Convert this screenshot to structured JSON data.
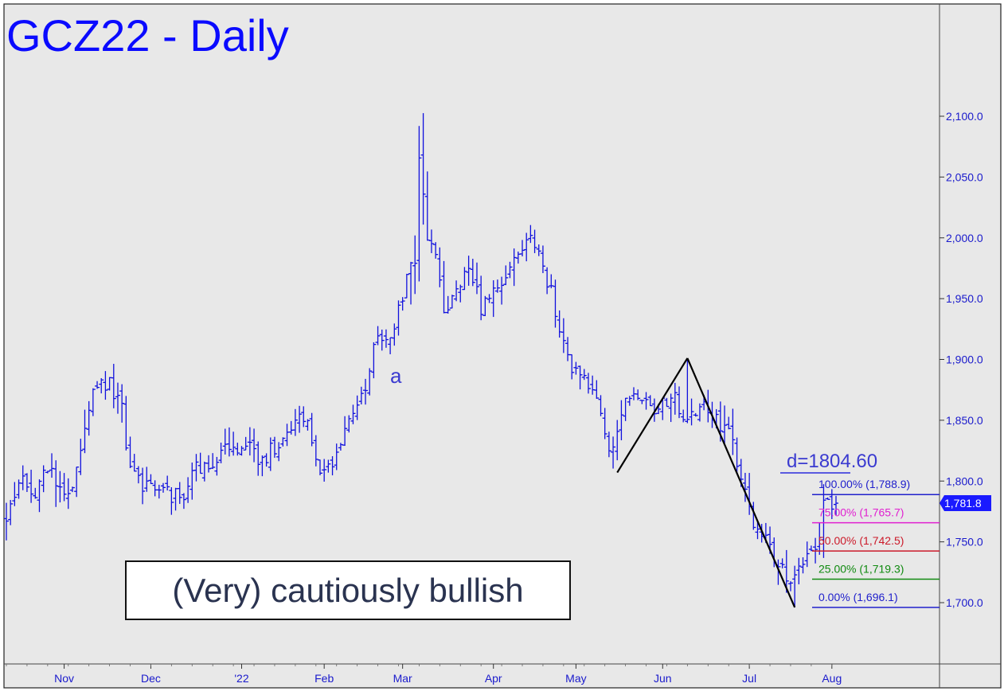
{
  "chart_data": {
    "type": "ohlc",
    "title": "GCZ22 - Daily",
    "annotation_box": "(Very) cautiously bullish",
    "wave_label": "a",
    "d_target_label": "d=1804.60",
    "last_price_badge": "1,781.8",
    "ylim": [
      1652,
      2150
    ],
    "y_ticks": [
      {
        "value": 1700,
        "label": "1,700.0"
      },
      {
        "value": 1750,
        "label": "1,750.0"
      },
      {
        "value": 1800,
        "label": "1,800.0"
      },
      {
        "value": 1850,
        "label": "1,850.0"
      },
      {
        "value": 1900,
        "label": "1,900.0"
      },
      {
        "value": 1950,
        "label": "1,950.0"
      },
      {
        "value": 2000,
        "label": "2,000.0"
      },
      {
        "value": 2050,
        "label": "2,050.0"
      },
      {
        "value": 2100,
        "label": "2,100.0"
      }
    ],
    "x_ticks": [
      {
        "index": 14,
        "label": "Nov"
      },
      {
        "index": 35,
        "label": "Dec"
      },
      {
        "index": 57,
        "label": "'22"
      },
      {
        "index": 77,
        "label": "Feb"
      },
      {
        "index": 96,
        "label": "Mar"
      },
      {
        "index": 118,
        "label": "Apr"
      },
      {
        "index": 138,
        "label": "May"
      },
      {
        "index": 159,
        "label": "Jun"
      },
      {
        "index": 180,
        "label": "Jul"
      },
      {
        "index": 200,
        "label": "Aug"
      }
    ],
    "bar_count": 202,
    "price_path": [
      {
        "i": 0,
        "v": 1768
      },
      {
        "i": 3,
        "v": 1805
      },
      {
        "i": 6,
        "v": 1785
      },
      {
        "i": 10,
        "v": 1810
      },
      {
        "i": 14,
        "v": 1788
      },
      {
        "i": 17,
        "v": 1808
      },
      {
        "i": 21,
        "v": 1875
      },
      {
        "i": 25,
        "v": 1880
      },
      {
        "i": 28,
        "v": 1862
      },
      {
        "i": 30,
        "v": 1805
      },
      {
        "i": 33,
        "v": 1795
      },
      {
        "i": 38,
        "v": 1790
      },
      {
        "i": 43,
        "v": 1785
      },
      {
        "i": 45,
        "v": 1810
      },
      {
        "i": 50,
        "v": 1815
      },
      {
        "i": 53,
        "v": 1825
      },
      {
        "i": 57,
        "v": 1830
      },
      {
        "i": 62,
        "v": 1818
      },
      {
        "i": 66,
        "v": 1832
      },
      {
        "i": 70,
        "v": 1850
      },
      {
        "i": 73,
        "v": 1852
      },
      {
        "i": 76,
        "v": 1800
      },
      {
        "i": 79,
        "v": 1812
      },
      {
        "i": 83,
        "v": 1845
      },
      {
        "i": 87,
        "v": 1880
      },
      {
        "i": 90,
        "v": 1925
      },
      {
        "i": 93,
        "v": 1915
      },
      {
        "i": 96,
        "v": 1955
      },
      {
        "i": 99,
        "v": 1985
      },
      {
        "i": 100,
        "v": 2060
      },
      {
        "i": 102,
        "v": 2005
      },
      {
        "i": 104,
        "v": 1985
      },
      {
        "i": 106,
        "v": 1935
      },
      {
        "i": 109,
        "v": 1955
      },
      {
        "i": 112,
        "v": 1975
      },
      {
        "i": 115,
        "v": 1942
      },
      {
        "i": 118,
        "v": 1955
      },
      {
        "i": 121,
        "v": 1968
      },
      {
        "i": 124,
        "v": 1990
      },
      {
        "i": 127,
        "v": 2005
      },
      {
        "i": 130,
        "v": 1975
      },
      {
        "i": 132,
        "v": 1955
      },
      {
        "i": 134,
        "v": 1920
      },
      {
        "i": 137,
        "v": 1895
      },
      {
        "i": 140,
        "v": 1888
      },
      {
        "i": 143,
        "v": 1865
      },
      {
        "i": 145,
        "v": 1835
      },
      {
        "i": 147,
        "v": 1825
      },
      {
        "i": 150,
        "v": 1865
      },
      {
        "i": 153,
        "v": 1875
      },
      {
        "i": 156,
        "v": 1860
      },
      {
        "i": 159,
        "v": 1865
      },
      {
        "i": 162,
        "v": 1875
      },
      {
        "i": 164,
        "v": 1845
      },
      {
        "i": 166,
        "v": 1855
      },
      {
        "i": 169,
        "v": 1865
      },
      {
        "i": 172,
        "v": 1850
      },
      {
        "i": 175,
        "v": 1840
      },
      {
        "i": 178,
        "v": 1805
      },
      {
        "i": 181,
        "v": 1762
      },
      {
        "i": 184,
        "v": 1755
      },
      {
        "i": 187,
        "v": 1730
      },
      {
        "i": 190,
        "v": 1718
      },
      {
        "i": 192,
        "v": 1728
      },
      {
        "i": 194,
        "v": 1740
      },
      {
        "i": 196,
        "v": 1745
      },
      {
        "i": 197,
        "v": 1760
      },
      {
        "i": 198,
        "v": 1778
      },
      {
        "i": 199,
        "v": 1781.8
      }
    ],
    "swing_lines": [
      {
        "from": {
          "i": 148,
          "v": 1807
        },
        "to": {
          "i": 165,
          "v": 1901
        }
      },
      {
        "from": {
          "i": 165,
          "v": 1901
        },
        "to": {
          "i": 191,
          "v": 1696.1
        }
      }
    ],
    "fib_levels": [
      {
        "pct": "100.00%",
        "value": 1788.9,
        "label": "100.00% (1,788.9)",
        "color": "#2020cc"
      },
      {
        "pct": "75.00%",
        "value": 1765.7,
        "label": "75.00% (1,765.7)",
        "color": "#e020d0"
      },
      {
        "pct": "50.00%",
        "value": 1742.5,
        "label": "50.00% (1,742.5)",
        "color": "#cc1a2a"
      },
      {
        "pct": "25.00%",
        "value": 1719.3,
        "label": "25.00% (1,719.3)",
        "color": "#108a10"
      },
      {
        "pct": "0.00%",
        "value": 1696.1,
        "label": "0.00% (1,696.1)",
        "color": "#2020cc"
      }
    ],
    "grid": false,
    "colors": {
      "bars": "#1010dd",
      "title": "#0a0aff",
      "axis_text": "#1a1acc",
      "plot_bg": "#e8e8e8",
      "swing": "#000000",
      "d_label": "#3a3ad0",
      "badge_bg": "#1a1aff",
      "annotation_text": "#2a3350"
    }
  }
}
